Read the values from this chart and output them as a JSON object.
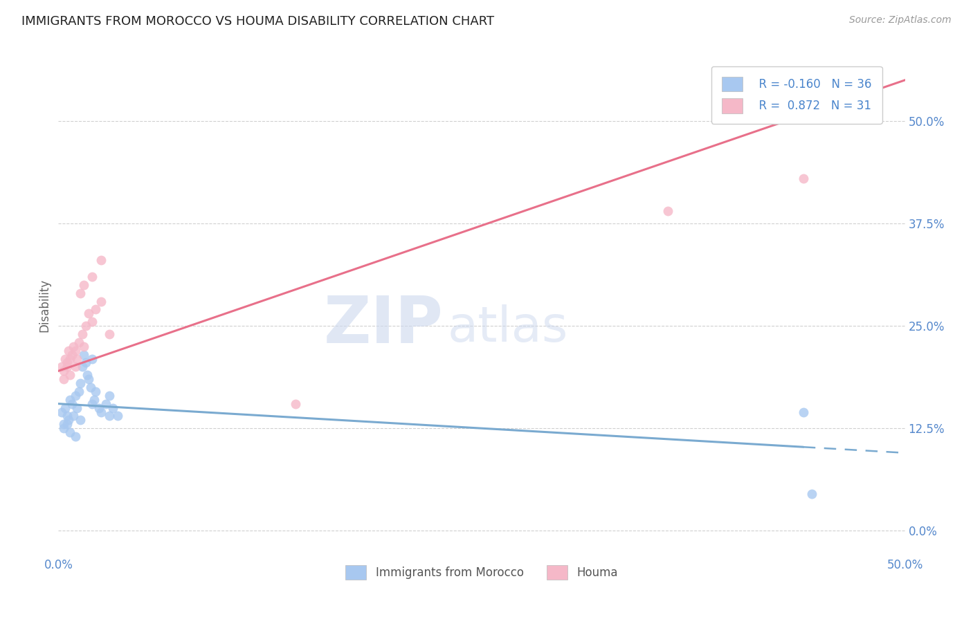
{
  "title": "IMMIGRANTS FROM MOROCCO VS HOUMA DISABILITY CORRELATION CHART",
  "source": "Source: ZipAtlas.com",
  "ylabel": "Disability",
  "xlim": [
    0.0,
    50.0
  ],
  "ylim": [
    -3.0,
    58.0
  ],
  "yticks": [
    0.0,
    12.5,
    25.0,
    37.5,
    50.0
  ],
  "blue_R": -0.16,
  "blue_N": 36,
  "pink_R": 0.872,
  "pink_N": 31,
  "blue_color": "#a8c8f0",
  "pink_color": "#f5b8c8",
  "blue_line_color": "#7aaad0",
  "pink_line_color": "#e8708a",
  "blue_scatter_x": [
    0.2,
    0.3,
    0.4,
    0.5,
    0.6,
    0.7,
    0.8,
    0.9,
    1.0,
    1.1,
    1.2,
    1.3,
    1.4,
    1.5,
    1.6,
    1.7,
    1.8,
    1.9,
    2.0,
    2.1,
    2.2,
    2.4,
    2.5,
    2.8,
    3.0,
    3.2,
    3.5,
    0.3,
    0.5,
    0.7,
    1.0,
    1.3,
    2.0,
    3.0,
    44.0,
    44.5
  ],
  "blue_scatter_y": [
    14.5,
    13.0,
    15.0,
    14.0,
    13.5,
    16.0,
    15.5,
    14.0,
    16.5,
    15.0,
    17.0,
    18.0,
    20.0,
    21.5,
    20.5,
    19.0,
    18.5,
    17.5,
    21.0,
    16.0,
    17.0,
    15.0,
    14.5,
    15.5,
    16.5,
    15.0,
    14.0,
    12.5,
    13.0,
    12.0,
    11.5,
    13.5,
    15.5,
    14.0,
    14.5,
    4.5
  ],
  "pink_scatter_x": [
    0.2,
    0.3,
    0.4,
    0.5,
    0.6,
    0.7,
    0.8,
    0.9,
    1.0,
    1.1,
    1.2,
    1.4,
    1.5,
    1.6,
    1.8,
    2.0,
    2.2,
    2.5,
    0.3,
    0.5,
    0.7,
    1.0,
    1.3,
    1.5,
    2.0,
    2.5,
    3.0,
    14.0,
    36.0,
    44.0,
    47.0
  ],
  "pink_scatter_y": [
    20.0,
    19.5,
    21.0,
    20.5,
    22.0,
    19.0,
    21.5,
    22.5,
    20.0,
    21.0,
    23.0,
    24.0,
    22.5,
    25.0,
    26.5,
    25.5,
    27.0,
    28.0,
    18.5,
    20.0,
    21.0,
    22.0,
    29.0,
    30.0,
    31.0,
    33.0,
    24.0,
    15.5,
    39.0,
    43.0,
    51.0
  ],
  "watermark_zip": "ZIP",
  "watermark_atlas": "atlas",
  "legend_blue_label": "Immigrants from Morocco",
  "legend_pink_label": "Houma",
  "background_color": "#ffffff",
  "grid_color": "#d0d0d0",
  "blue_solid_end": 44.0,
  "pink_line_x0": 0.0,
  "pink_line_x1": 50.0,
  "pink_line_y0": 19.5,
  "pink_line_y1": 55.0,
  "blue_line_x0": 0.0,
  "blue_line_x1": 50.0,
  "blue_line_y0": 15.5,
  "blue_line_y1": 9.5
}
